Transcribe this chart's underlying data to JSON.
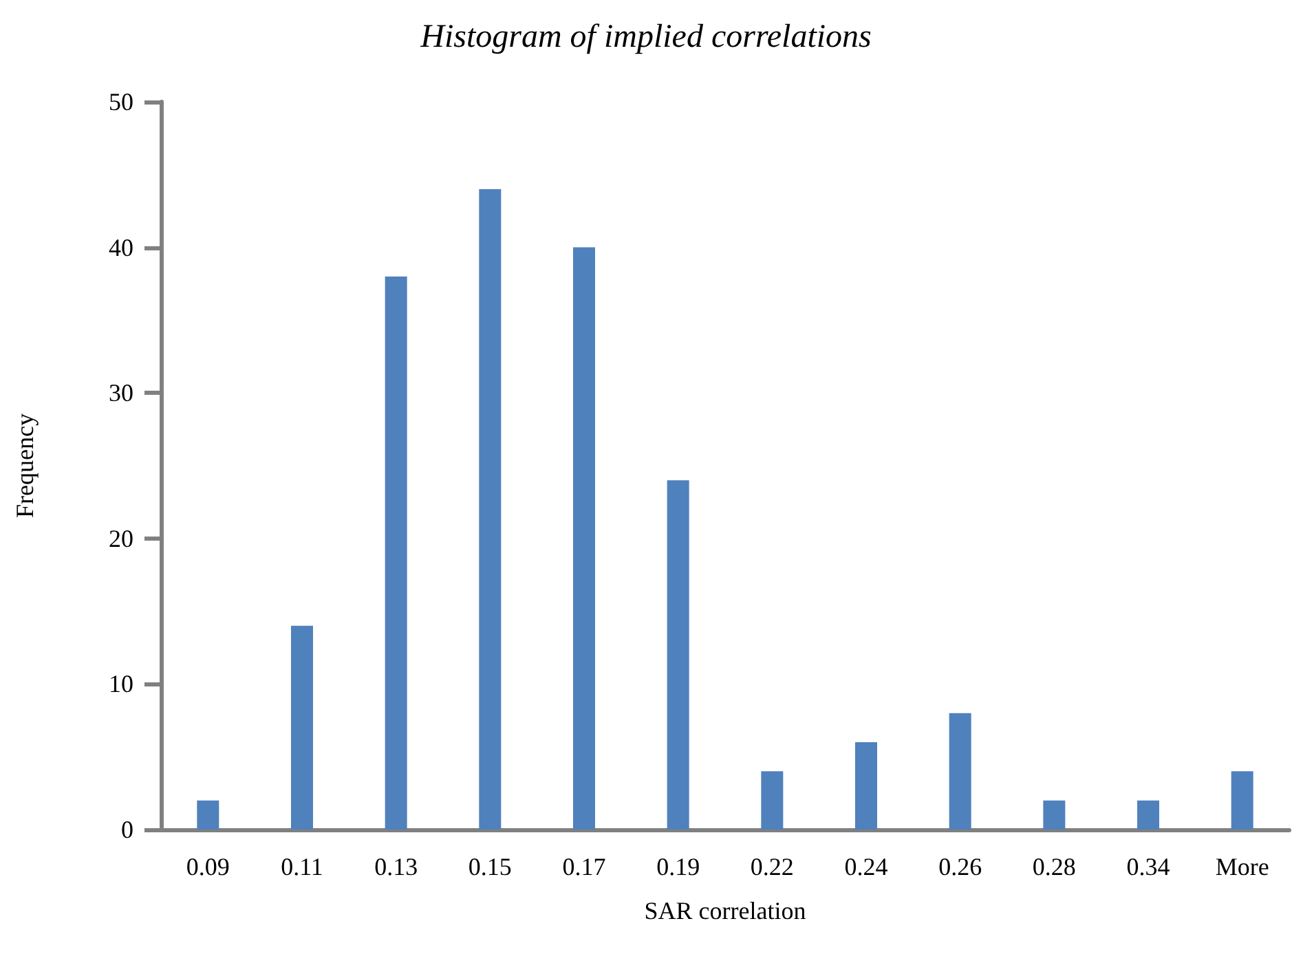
{
  "chart_data": {
    "type": "bar",
    "title": "Histogram of implied correlations",
    "xlabel": "SAR correlation",
    "ylabel": "Frequency",
    "categories": [
      "0.09",
      "0.11",
      "0.13",
      "0.15",
      "0.17",
      "0.19",
      "0.22",
      "0.24",
      "0.26",
      "0.28",
      "0.34",
      "More"
    ],
    "values": [
      2,
      14,
      38,
      44,
      40,
      24,
      4,
      6,
      8,
      2,
      2,
      4
    ],
    "color": "#4f81bd",
    "ylim": [
      0,
      50
    ],
    "yticks": [
      0,
      10,
      20,
      30,
      40,
      50
    ],
    "grid": false
  }
}
